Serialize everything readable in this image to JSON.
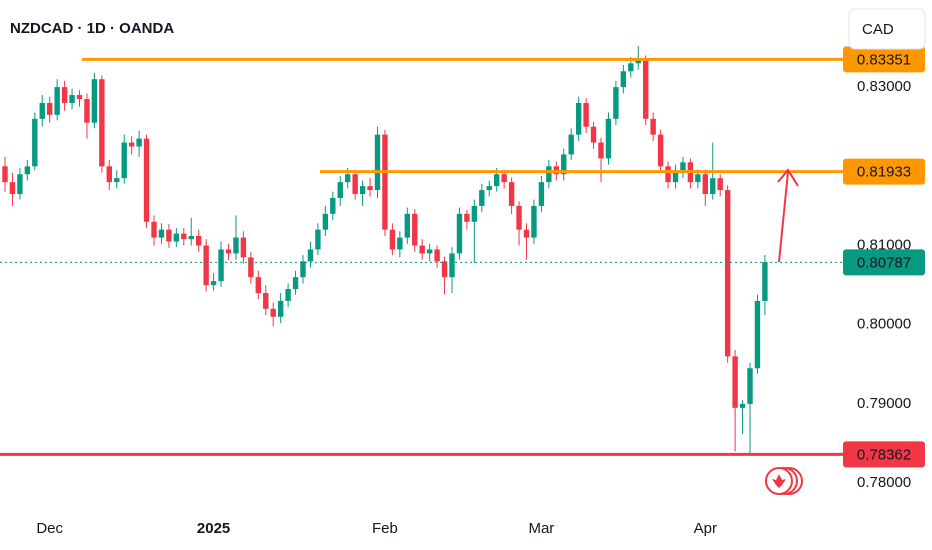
{
  "chart_data": {
    "type": "candlestick",
    "title": "NZDCAD · 1D · OANDA",
    "currency": "CAD",
    "up_color": "#089981",
    "down_color": "#f23645",
    "ylim": [
      0.7766,
      0.841
    ],
    "yticks": [
      {
        "value": 0.78,
        "label": "0.78000"
      },
      {
        "value": 0.79,
        "label": "0.79000"
      },
      {
        "value": 0.8,
        "label": "0.80000"
      },
      {
        "value": 0.81,
        "label": "0.81000"
      },
      {
        "value": 0.83,
        "label": "0.83000"
      }
    ],
    "categories": [
      null,
      null,
      null,
      null,
      null,
      null,
      "Dec",
      null,
      null,
      null,
      null,
      null,
      null,
      null,
      null,
      null,
      null,
      null,
      null,
      null,
      null,
      null,
      null,
      null,
      null,
      null,
      null,
      null,
      "2025",
      null,
      null,
      null,
      null,
      null,
      null,
      null,
      null,
      null,
      null,
      null,
      null,
      null,
      null,
      null,
      null,
      null,
      null,
      null,
      null,
      null,
      null,
      "Feb",
      null,
      null,
      null,
      null,
      null,
      null,
      null,
      null,
      null,
      null,
      null,
      null,
      null,
      null,
      null,
      null,
      null,
      null,
      null,
      null,
      "Mar",
      null,
      null,
      null,
      null,
      null,
      null,
      null,
      null,
      null,
      null,
      null,
      null,
      null,
      null,
      null,
      null,
      null,
      null,
      null,
      null,
      null,
      "Apr",
      null,
      null,
      null,
      null,
      null,
      null,
      null,
      null
    ],
    "ohlc": [
      [
        0.82,
        0.8212,
        0.8168,
        0.818
      ],
      [
        0.818,
        0.8192,
        0.815,
        0.8165
      ],
      [
        0.8165,
        0.8198,
        0.8158,
        0.819
      ],
      [
        0.819,
        0.8208,
        0.8182,
        0.82
      ],
      [
        0.82,
        0.8268,
        0.8195,
        0.826
      ],
      [
        0.826,
        0.829,
        0.825,
        0.828
      ],
      [
        0.828,
        0.8288,
        0.8255,
        0.8265
      ],
      [
        0.8265,
        0.831,
        0.8258,
        0.83
      ],
      [
        0.83,
        0.8308,
        0.827,
        0.828
      ],
      [
        0.828,
        0.8298,
        0.8272,
        0.829
      ],
      [
        0.829,
        0.8296,
        0.8275,
        0.8285
      ],
      [
        0.8285,
        0.8292,
        0.8235,
        0.8255
      ],
      [
        0.8255,
        0.8318,
        0.8248,
        0.831
      ],
      [
        0.831,
        0.8315,
        0.8192,
        0.82
      ],
      [
        0.82,
        0.8208,
        0.817,
        0.818
      ],
      [
        0.818,
        0.8195,
        0.8172,
        0.8185
      ],
      [
        0.8185,
        0.824,
        0.8178,
        0.823
      ],
      [
        0.823,
        0.8238,
        0.8215,
        0.8225
      ],
      [
        0.8225,
        0.8245,
        0.8212,
        0.8235
      ],
      [
        0.8235,
        0.824,
        0.8122,
        0.813
      ],
      [
        0.813,
        0.8138,
        0.81,
        0.811
      ],
      [
        0.811,
        0.8128,
        0.8102,
        0.812
      ],
      [
        0.812,
        0.8127,
        0.8097,
        0.8105
      ],
      [
        0.8105,
        0.8122,
        0.8098,
        0.8115
      ],
      [
        0.8115,
        0.8122,
        0.81,
        0.8108
      ],
      [
        0.8108,
        0.8135,
        0.81,
        0.8112
      ],
      [
        0.8112,
        0.812,
        0.8092,
        0.81
      ],
      [
        0.81,
        0.8108,
        0.8042,
        0.805
      ],
      [
        0.805,
        0.8065,
        0.8043,
        0.8055
      ],
      [
        0.8055,
        0.8105,
        0.8048,
        0.8095
      ],
      [
        0.8095,
        0.8102,
        0.8082,
        0.809
      ],
      [
        0.809,
        0.8138,
        0.8082,
        0.811
      ],
      [
        0.811,
        0.8118,
        0.8077,
        0.8085
      ],
      [
        0.8085,
        0.8092,
        0.8052,
        0.806
      ],
      [
        0.806,
        0.8068,
        0.8032,
        0.804
      ],
      [
        0.804,
        0.805,
        0.8012,
        0.802
      ],
      [
        0.802,
        0.8028,
        0.7998,
        0.801
      ],
      [
        0.801,
        0.804,
        0.8002,
        0.803
      ],
      [
        0.803,
        0.8052,
        0.8022,
        0.8045
      ],
      [
        0.8045,
        0.8068,
        0.8038,
        0.806
      ],
      [
        0.806,
        0.8088,
        0.8052,
        0.808
      ],
      [
        0.808,
        0.8105,
        0.8072,
        0.8095
      ],
      [
        0.8095,
        0.8128,
        0.8088,
        0.812
      ],
      [
        0.812,
        0.815,
        0.8112,
        0.814
      ],
      [
        0.814,
        0.8168,
        0.8132,
        0.816
      ],
      [
        0.816,
        0.8188,
        0.815,
        0.818
      ],
      [
        0.818,
        0.8198,
        0.8172,
        0.819
      ],
      [
        0.819,
        0.8195,
        0.8158,
        0.8165
      ],
      [
        0.8165,
        0.8182,
        0.815,
        0.8175
      ],
      [
        0.8175,
        0.8185,
        0.8162,
        0.817
      ],
      [
        0.817,
        0.825,
        0.816,
        0.824
      ],
      [
        0.824,
        0.8246,
        0.8112,
        0.812
      ],
      [
        0.812,
        0.8128,
        0.8088,
        0.8095
      ],
      [
        0.8095,
        0.8118,
        0.8085,
        0.811
      ],
      [
        0.811,
        0.8148,
        0.8102,
        0.814
      ],
      [
        0.814,
        0.8146,
        0.8092,
        0.81
      ],
      [
        0.81,
        0.8108,
        0.8082,
        0.809
      ],
      [
        0.809,
        0.8102,
        0.808,
        0.8095
      ],
      [
        0.8095,
        0.81,
        0.8072,
        0.808
      ],
      [
        0.808,
        0.8086,
        0.8038,
        0.806
      ],
      [
        0.806,
        0.8098,
        0.804,
        0.809
      ],
      [
        0.809,
        0.8148,
        0.8082,
        0.814
      ],
      [
        0.814,
        0.8145,
        0.812,
        0.813
      ],
      [
        0.813,
        0.8158,
        0.8078,
        0.815
      ],
      [
        0.815,
        0.8178,
        0.8142,
        0.817
      ],
      [
        0.817,
        0.8182,
        0.8162,
        0.8175
      ],
      [
        0.8175,
        0.8198,
        0.8168,
        0.819
      ],
      [
        0.819,
        0.8196,
        0.8172,
        0.818
      ],
      [
        0.818,
        0.8186,
        0.814,
        0.815
      ],
      [
        0.815,
        0.8156,
        0.81,
        0.812
      ],
      [
        0.812,
        0.8128,
        0.8082,
        0.811
      ],
      [
        0.811,
        0.8158,
        0.8102,
        0.815
      ],
      [
        0.815,
        0.8188,
        0.8142,
        0.818
      ],
      [
        0.818,
        0.8208,
        0.8172,
        0.82
      ],
      [
        0.82,
        0.8206,
        0.8182,
        0.819
      ],
      [
        0.819,
        0.8222,
        0.8182,
        0.8215
      ],
      [
        0.8215,
        0.8248,
        0.8208,
        0.824
      ],
      [
        0.824,
        0.8288,
        0.8232,
        0.828
      ],
      [
        0.828,
        0.8286,
        0.8242,
        0.825
      ],
      [
        0.825,
        0.8256,
        0.8222,
        0.823
      ],
      [
        0.823,
        0.8236,
        0.818,
        0.821
      ],
      [
        0.821,
        0.8268,
        0.8202,
        0.826
      ],
      [
        0.826,
        0.8308,
        0.8252,
        0.83
      ],
      [
        0.83,
        0.8328,
        0.8292,
        0.832
      ],
      [
        0.832,
        0.8338,
        0.8312,
        0.833
      ],
      [
        0.833,
        0.8352,
        0.8322,
        0.8335
      ],
      [
        0.8335,
        0.834,
        0.8252,
        0.826
      ],
      [
        0.826,
        0.8268,
        0.8232,
        0.824
      ],
      [
        0.824,
        0.8246,
        0.8192,
        0.82
      ],
      [
        0.82,
        0.8206,
        0.8172,
        0.818
      ],
      [
        0.818,
        0.8202,
        0.8172,
        0.8195
      ],
      [
        0.8195,
        0.8212,
        0.8185,
        0.8205
      ],
      [
        0.8205,
        0.821,
        0.8172,
        0.818
      ],
      [
        0.818,
        0.8196,
        0.8172,
        0.819
      ],
      [
        0.819,
        0.8196,
        0.815,
        0.8165
      ],
      [
        0.8165,
        0.823,
        0.8158,
        0.8185
      ],
      [
        0.8185,
        0.819,
        0.8162,
        0.817
      ],
      [
        0.817,
        0.8176,
        0.7952,
        0.796
      ],
      [
        0.796,
        0.7968,
        0.784,
        0.7895
      ],
      [
        0.7895,
        0.7905,
        0.7862,
        0.79
      ],
      [
        0.79,
        0.7952,
        0.7836,
        0.7945
      ],
      [
        0.7945,
        0.8038,
        0.7938,
        0.803
      ],
      [
        0.803,
        0.8088,
        0.8012,
        0.8079
      ]
    ],
    "levels": [
      {
        "value": 0.83351,
        "color": "#ff9800"
      },
      {
        "value": 0.81933,
        "color": "#ff9800"
      },
      {
        "value": 0.78362,
        "color": "#f23645"
      },
      {
        "value": 0.80787,
        "color": "#089981"
      }
    ]
  }
}
